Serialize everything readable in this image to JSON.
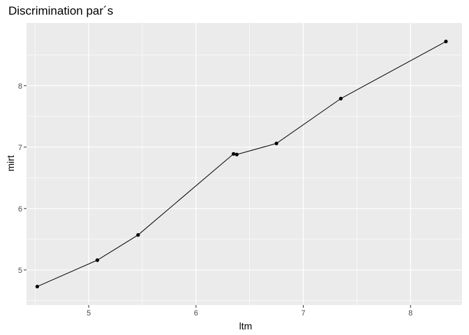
{
  "chart_data": {
    "type": "line",
    "title": "Discrimination par´s",
    "xlabel": "ltm",
    "ylabel": "mirt",
    "xlim": [
      4.42,
      8.48
    ],
    "ylim": [
      4.43,
      9.02
    ],
    "x_ticks": [
      5,
      6,
      7,
      8
    ],
    "y_ticks": [
      5,
      6,
      7,
      8
    ],
    "grid": true,
    "background_color": "#ebebeb",
    "grid_color": "#ffffff",
    "line_color": "#000000",
    "series": [
      {
        "x": [
          4.52,
          5.08,
          5.46,
          6.35,
          6.38,
          6.75,
          7.35,
          8.33
        ],
        "y": [
          4.73,
          5.16,
          5.57,
          6.89,
          6.88,
          7.06,
          7.79,
          8.72
        ]
      }
    ]
  }
}
